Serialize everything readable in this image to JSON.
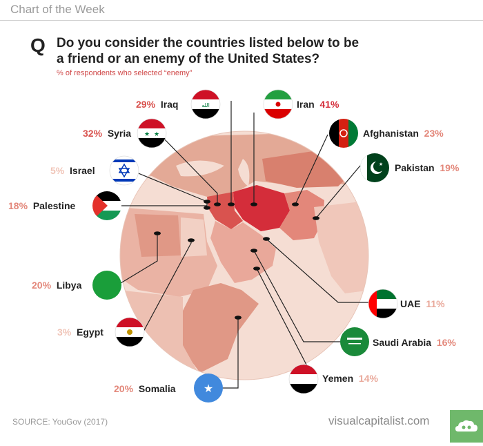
{
  "header": {
    "title": "Chart of the Week"
  },
  "question": {
    "mark": "Q",
    "text": "Do you consider the countries listed below to be a friend or an enemy of the United States?",
    "subtitle": "% of respondents who selected “enemy”"
  },
  "colors": {
    "max_enemy": "#d42d3a",
    "mid_enemy": "#e09886",
    "low_enemy": "#f2d3c8",
    "map_circle": "#f4d8cd",
    "text_dark": "#222222"
  },
  "chart_data": {
    "type": "map",
    "title": "Do you consider the countries listed below to be a friend or an enemy of the United States?",
    "subtitle": "% of respondents who selected “enemy”",
    "categories": [
      "Iraq",
      "Iran",
      "Syria",
      "Afghanistan",
      "Israel",
      "Pakistan",
      "Palestine",
      "Libya",
      "Egypt",
      "UAE",
      "Saudi Arabia",
      "Yemen",
      "Somalia"
    ],
    "values": [
      29,
      41,
      32,
      23,
      5,
      19,
      18,
      20,
      3,
      11,
      16,
      14,
      20
    ],
    "unit": "%"
  },
  "countries": [
    {
      "name": "Iraq",
      "pct": "29%",
      "color": "#d9534f",
      "flag": "iraq-flag-icon"
    },
    {
      "name": "Iran",
      "pct": "41%",
      "color": "#d42d3a",
      "flag": "iran-flag-icon"
    },
    {
      "name": "Syria",
      "pct": "32%",
      "color": "#d9534f",
      "flag": "syria-flag-icon"
    },
    {
      "name": "Afghanistan",
      "pct": "23%",
      "color": "#e3877a",
      "flag": "afghanistan-flag-icon"
    },
    {
      "name": "Israel",
      "pct": "5%",
      "color": "#f0c4b7",
      "flag": "israel-flag-icon"
    },
    {
      "name": "Pakistan",
      "pct": "19%",
      "color": "#e3877a",
      "flag": "pakistan-flag-icon"
    },
    {
      "name": "Palestine",
      "pct": "18%",
      "color": "#e3877a",
      "flag": "palestine-flag-icon"
    },
    {
      "name": "Libya",
      "pct": "20%",
      "color": "#e3877a",
      "flag": "libya-flag-icon"
    },
    {
      "name": "Egypt",
      "pct": "3%",
      "color": "#f0c4b7",
      "flag": "egypt-flag-icon"
    },
    {
      "name": "UAE",
      "pct": "11%",
      "color": "#e9a89a",
      "flag": "uae-flag-icon"
    },
    {
      "name": "Saudi Arabia",
      "pct": "16%",
      "color": "#e3877a",
      "flag": "saudi-arabia-flag-icon"
    },
    {
      "name": "Yemen",
      "pct": "14%",
      "color": "#e9a89a",
      "flag": "yemen-flag-icon"
    },
    {
      "name": "Somalia",
      "pct": "20%",
      "color": "#e3877a",
      "flag": "somalia-flag-icon"
    }
  ],
  "footer": {
    "source": "SOURCE: YouGov (2017)",
    "brand": "visualcapitalist.com"
  }
}
